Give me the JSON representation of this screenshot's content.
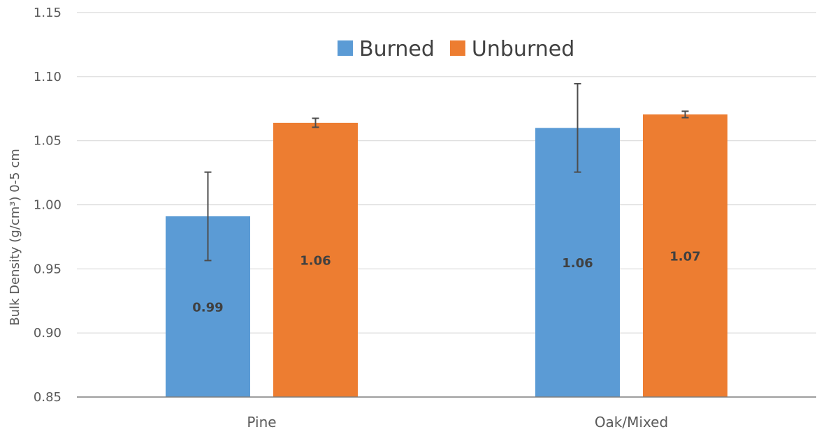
{
  "chart_data": {
    "type": "bar",
    "title": "",
    "xlabel": "",
    "ylabel": "Bulk Density (g/cm³) 0-5 cm",
    "ylim": [
      0.85,
      1.15
    ],
    "yticks": [
      "0.85",
      "0.90",
      "0.95",
      "1.00",
      "1.05",
      "1.10",
      "1.15"
    ],
    "grid": true,
    "legend_position": "top-center",
    "categories": [
      "Pine",
      "Oak/Mixed"
    ],
    "series": [
      {
        "name": "Burned",
        "color": "#5b9bd5",
        "values": [
          0.991,
          1.06
        ],
        "labels": [
          "0.99",
          "1.06"
        ],
        "error": [
          0.0345,
          0.0345
        ]
      },
      {
        "name": "Unburned",
        "color": "#ed7d31",
        "values": [
          1.064,
          1.0705
        ],
        "labels": [
          "1.06",
          "1.07"
        ],
        "error": [
          0.0035,
          0.0025
        ]
      }
    ]
  }
}
